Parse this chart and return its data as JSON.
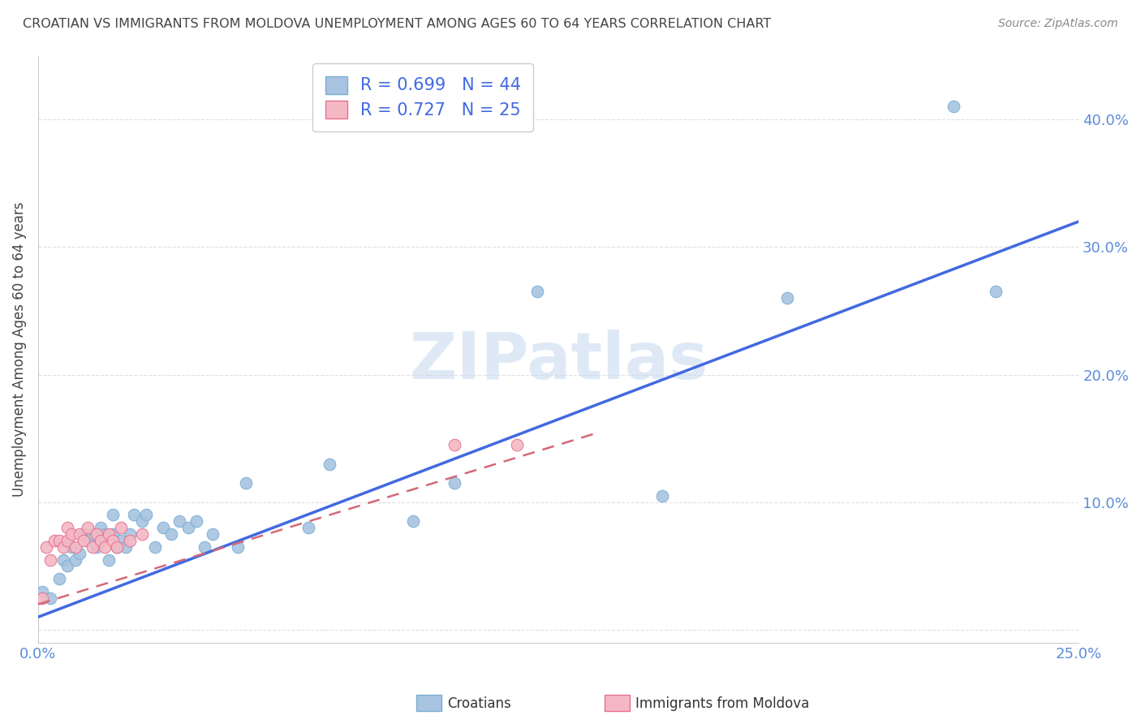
{
  "title": "CROATIAN VS IMMIGRANTS FROM MOLDOVA UNEMPLOYMENT AMONG AGES 60 TO 64 YEARS CORRELATION CHART",
  "source": "Source: ZipAtlas.com",
  "ylabel": "Unemployment Among Ages 60 to 64 years",
  "xlim": [
    0.0,
    0.25
  ],
  "ylim": [
    -0.01,
    0.45
  ],
  "xticks": [
    0.0,
    0.05,
    0.1,
    0.15,
    0.2,
    0.25
  ],
  "xtick_labels": [
    "0.0%",
    "",
    "",
    "",
    "",
    "25.0%"
  ],
  "yticks": [
    0.0,
    0.1,
    0.2,
    0.3,
    0.4
  ],
  "ytick_labels": [
    "",
    "10.0%",
    "20.0%",
    "30.0%",
    "40.0%"
  ],
  "legend_entries": [
    {
      "label": "Croatians",
      "color": "#a8c4e0",
      "edge": "#7aafd4",
      "R": "0.699",
      "N": "44"
    },
    {
      "label": "Immigrants from Moldova",
      "color": "#f4b8c4",
      "edge": "#e87090",
      "R": "0.727",
      "N": "25"
    }
  ],
  "blue_scatter_x": [
    0.001,
    0.003,
    0.005,
    0.006,
    0.007,
    0.008,
    0.009,
    0.01,
    0.011,
    0.012,
    0.013,
    0.014,
    0.015,
    0.015,
    0.016,
    0.017,
    0.018,
    0.018,
    0.019,
    0.02,
    0.021,
    0.022,
    0.023,
    0.025,
    0.026,
    0.028,
    0.03,
    0.032,
    0.034,
    0.036,
    0.038,
    0.04,
    0.042,
    0.048,
    0.05,
    0.065,
    0.07,
    0.09,
    0.1,
    0.12,
    0.15,
    0.18,
    0.22,
    0.23
  ],
  "blue_scatter_y": [
    0.03,
    0.025,
    0.04,
    0.055,
    0.05,
    0.065,
    0.055,
    0.06,
    0.075,
    0.07,
    0.075,
    0.065,
    0.07,
    0.08,
    0.075,
    0.055,
    0.075,
    0.09,
    0.065,
    0.07,
    0.065,
    0.075,
    0.09,
    0.085,
    0.09,
    0.065,
    0.08,
    0.075,
    0.085,
    0.08,
    0.085,
    0.065,
    0.075,
    0.065,
    0.115,
    0.08,
    0.13,
    0.085,
    0.115,
    0.265,
    0.105,
    0.26,
    0.41,
    0.265
  ],
  "pink_scatter_x": [
    0.001,
    0.002,
    0.003,
    0.004,
    0.005,
    0.006,
    0.007,
    0.007,
    0.008,
    0.009,
    0.01,
    0.011,
    0.012,
    0.013,
    0.014,
    0.015,
    0.016,
    0.017,
    0.018,
    0.019,
    0.02,
    0.022,
    0.025,
    0.1,
    0.115
  ],
  "pink_scatter_y": [
    0.025,
    0.065,
    0.055,
    0.07,
    0.07,
    0.065,
    0.07,
    0.08,
    0.075,
    0.065,
    0.075,
    0.07,
    0.08,
    0.065,
    0.075,
    0.07,
    0.065,
    0.075,
    0.07,
    0.065,
    0.08,
    0.07,
    0.075,
    0.145,
    0.145
  ],
  "blue_line_x": [
    0.0,
    0.25
  ],
  "blue_line_y": [
    0.01,
    0.32
  ],
  "pink_line_x": [
    0.0,
    0.135
  ],
  "pink_line_y": [
    0.02,
    0.155
  ],
  "watermark_text": "ZIPatlas",
  "watermark_color": "#c5d8f0",
  "watermark_alpha": 0.55,
  "scatter_size": 110,
  "blue_dot_color": "#a8c4e0",
  "blue_dot_edge": "#7aafd4",
  "pink_dot_color": "#f4b8c4",
  "pink_dot_edge": "#e87090",
  "blue_line_color": "#4169e1",
  "pink_line_color": "#d46878",
  "axis_label_color": "#5b8dd9",
  "title_color": "#444444",
  "source_color": "#888888",
  "grid_color": "#e0e0e0",
  "legend_text_color": "#4169e1",
  "legend_edge_color": "#cccccc"
}
